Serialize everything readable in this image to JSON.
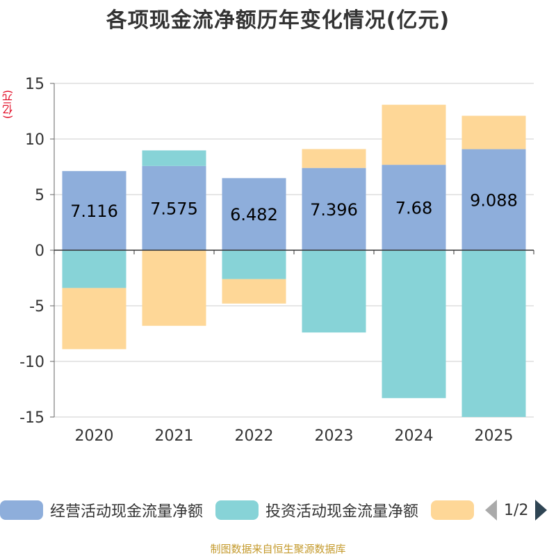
{
  "chart_data": {
    "type": "bar",
    "stacked": true,
    "title": "各项现金流净额历年变化情况(亿元)",
    "ylabel": "(亿元)",
    "ylim": [
      -15,
      15
    ],
    "yticks": [
      15,
      10,
      5,
      0,
      -5,
      -10,
      -15
    ],
    "categories": [
      "2020",
      "2021",
      "2022",
      "2023",
      "2024",
      "2025"
    ],
    "series": [
      {
        "name": "经营活动现金流量净额",
        "color": "#8eaedb",
        "values": [
          7.116,
          7.575,
          6.482,
          7.396,
          7.68,
          9.088
        ],
        "labels": [
          "7.116",
          "7.575",
          "6.482",
          "7.396",
          "7.68",
          "9.088"
        ]
      },
      {
        "name": "投资活动现金流量净额",
        "color": "#87d3d7",
        "values": [
          -3.4,
          1.4,
          -2.6,
          -7.4,
          -13.3,
          -15.0
        ]
      },
      {
        "name": "",
        "color": "#fed797",
        "values": [
          -5.5,
          -6.8,
          -2.2,
          1.7,
          5.4,
          3.0
        ]
      }
    ]
  },
  "legend": {
    "items": [
      {
        "label": "经营活动现金流量净额",
        "color": "#8eaedb"
      },
      {
        "label": "投资活动现金流量净额",
        "color": "#87d3d7"
      },
      {
        "label": "",
        "color": "#fed797"
      }
    ],
    "page": "1/2"
  },
  "source": "制图数据来自恒生聚源数据库"
}
